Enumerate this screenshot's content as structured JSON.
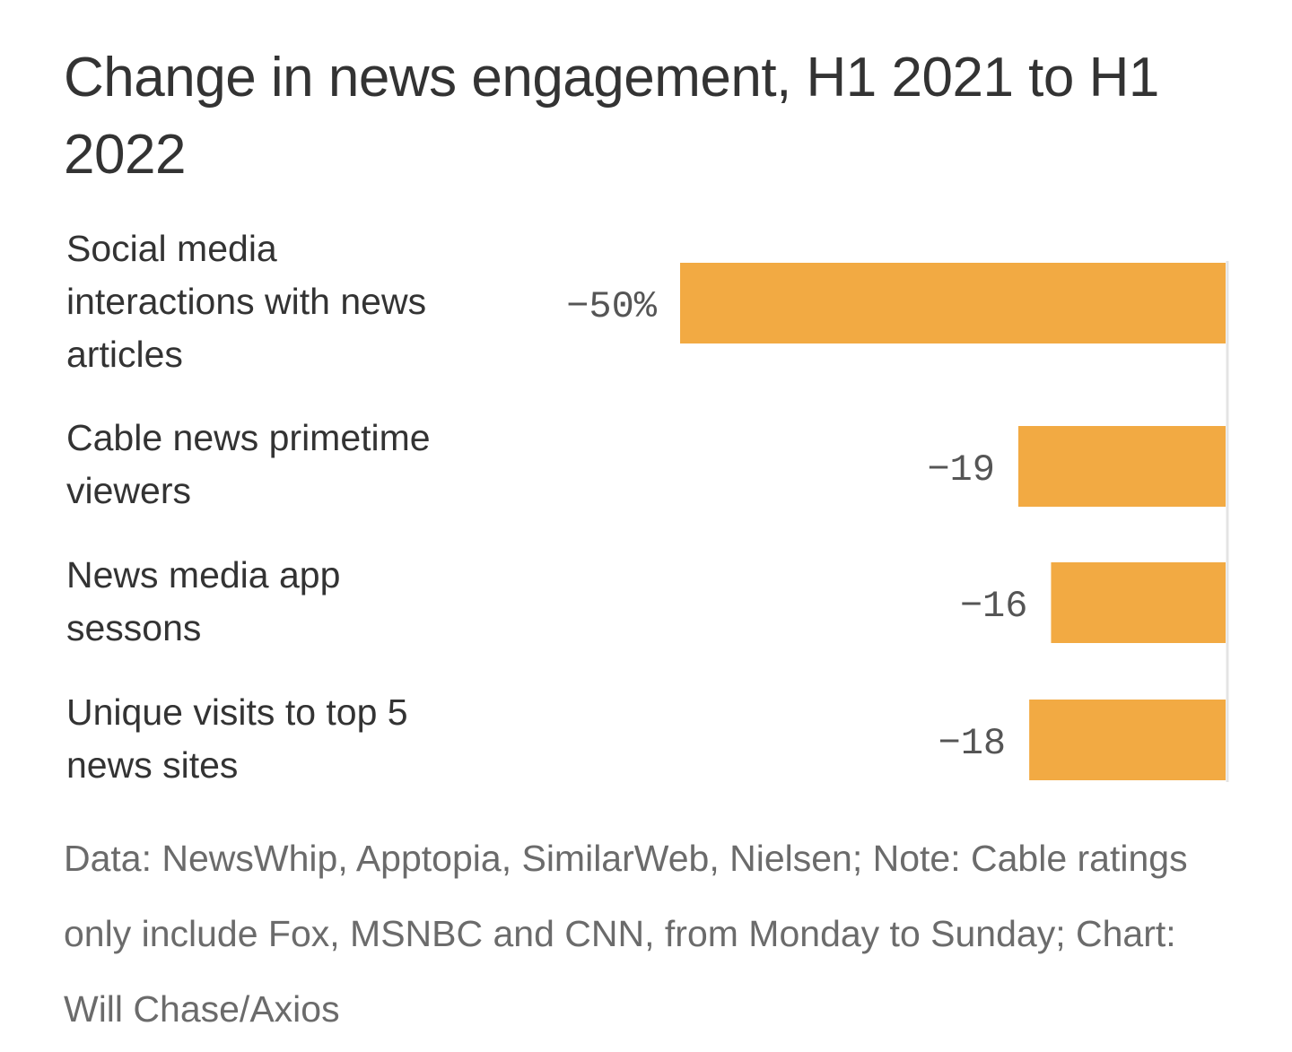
{
  "title": "Change in news engagement, H1 2021 to H1 2022",
  "footer": "Data: NewsWhip, Apptopia, SimilarWeb, Nielsen; Note: Cable ratings only include Fox, MSNBC and CNN, from Monday to Sunday; Chart: Will Chase/Axios",
  "chart_data": {
    "type": "bar",
    "orientation": "horizontal",
    "categories": [
      "Social media interactions with news articles",
      "Cable news primetime viewers",
      "News media app sessons",
      "Unique visits to top 5 news sites"
    ],
    "category_lines": [
      [
        "Social media",
        "interactions with news",
        "articles"
      ],
      [
        "Cable news primetime",
        "viewers"
      ],
      [
        "News media app",
        "sessons"
      ],
      [
        "Unique visits to top 5",
        "news sites"
      ]
    ],
    "values": [
      -50,
      -19,
      -16,
      -18
    ],
    "value_labels": [
      "−50%",
      "−19",
      "−16",
      "−18"
    ],
    "unit": "%",
    "xlim": [
      -50,
      0
    ],
    "bar_color": "#F2AA43",
    "zero_line_color": "#e4e4e4",
    "grid": false,
    "legend": "none"
  }
}
